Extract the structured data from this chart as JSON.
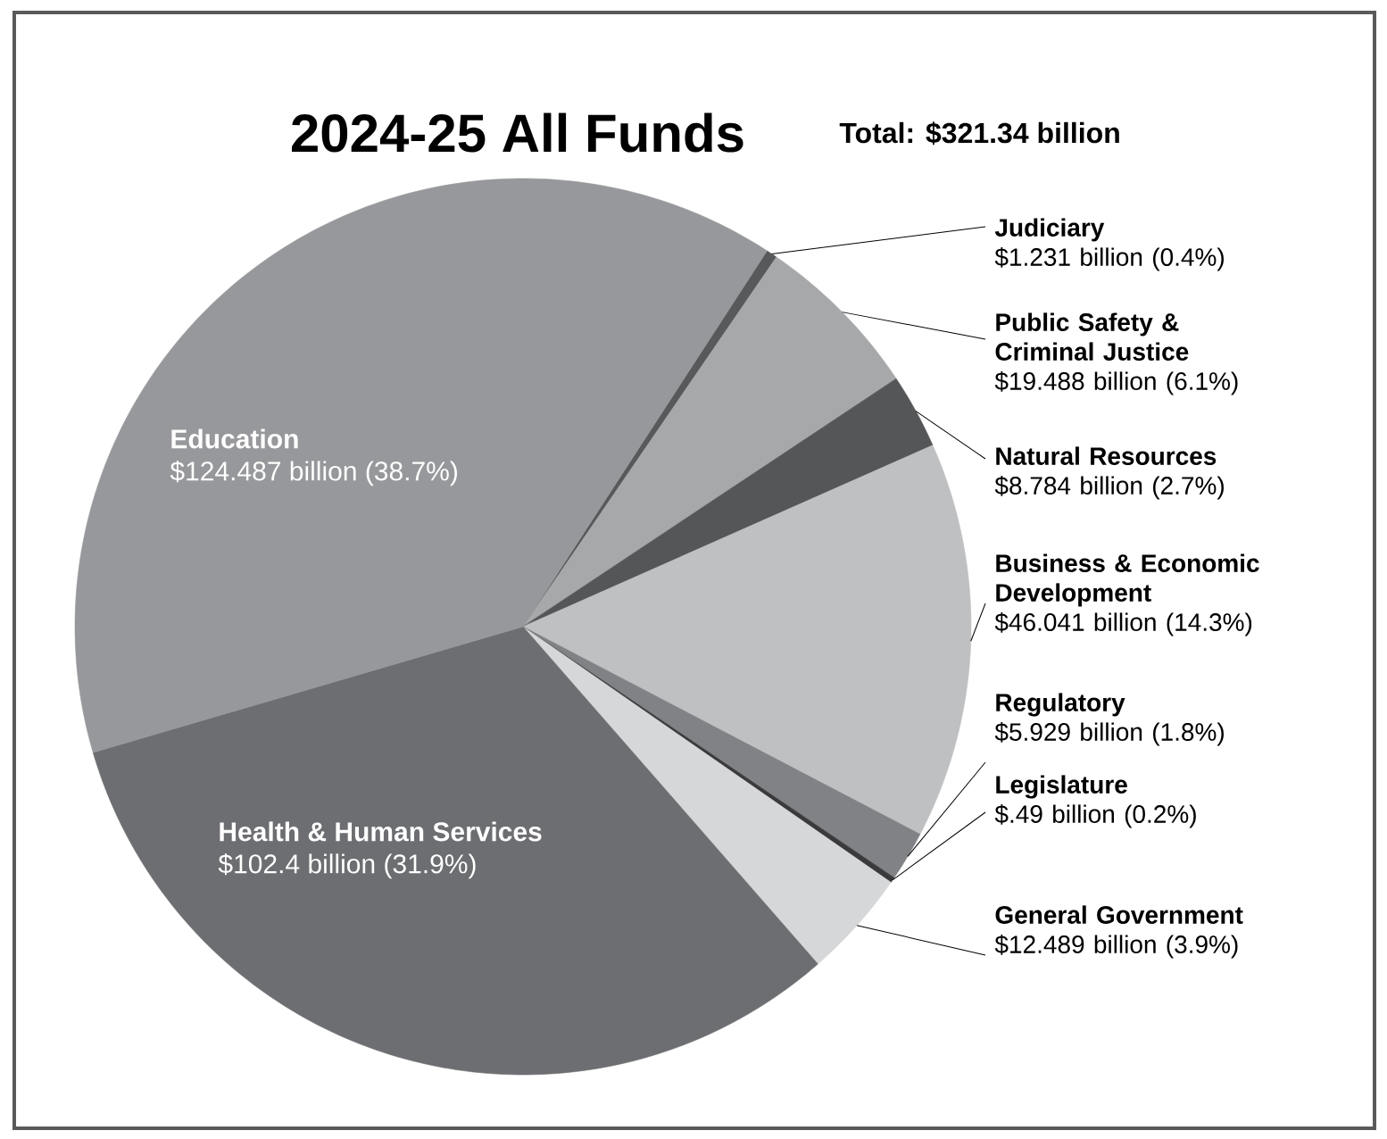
{
  "chart_data": {
    "type": "pie",
    "title": "2024-25 All Funds",
    "subtitle": "Total: $321.34 billion",
    "categories": [
      "Judiciary",
      "Public Safety & Criminal Justice",
      "Natural Resources",
      "Business & Economic Development",
      "Regulatory",
      "Legislature",
      "General Government",
      "Health & Human Services",
      "Education"
    ],
    "values": [
      0.4,
      6.1,
      2.7,
      14.3,
      1.8,
      0.2,
      3.9,
      31.9,
      38.7
    ],
    "value_labels": [
      "$1.231 billion (0.4%)",
      "$19.488 billion (6.1%)",
      "$8.784 billion (2.7%)",
      "$46.041 billion (14.3%)",
      "$5.929 billion (1.8%)",
      "$.49 billion (0.2%)",
      "$12.489 billion (3.9%)",
      "$102.4 billion (31.9%)",
      "$124.487 billion (38.7%)"
    ],
    "colors": [
      "#58595b",
      "#a7a8aa",
      "#555658",
      "#bfc0c2",
      "#808285",
      "#3a3a3c",
      "#d6d7d8",
      "#6d6e71",
      "#97989b"
    ]
  }
}
